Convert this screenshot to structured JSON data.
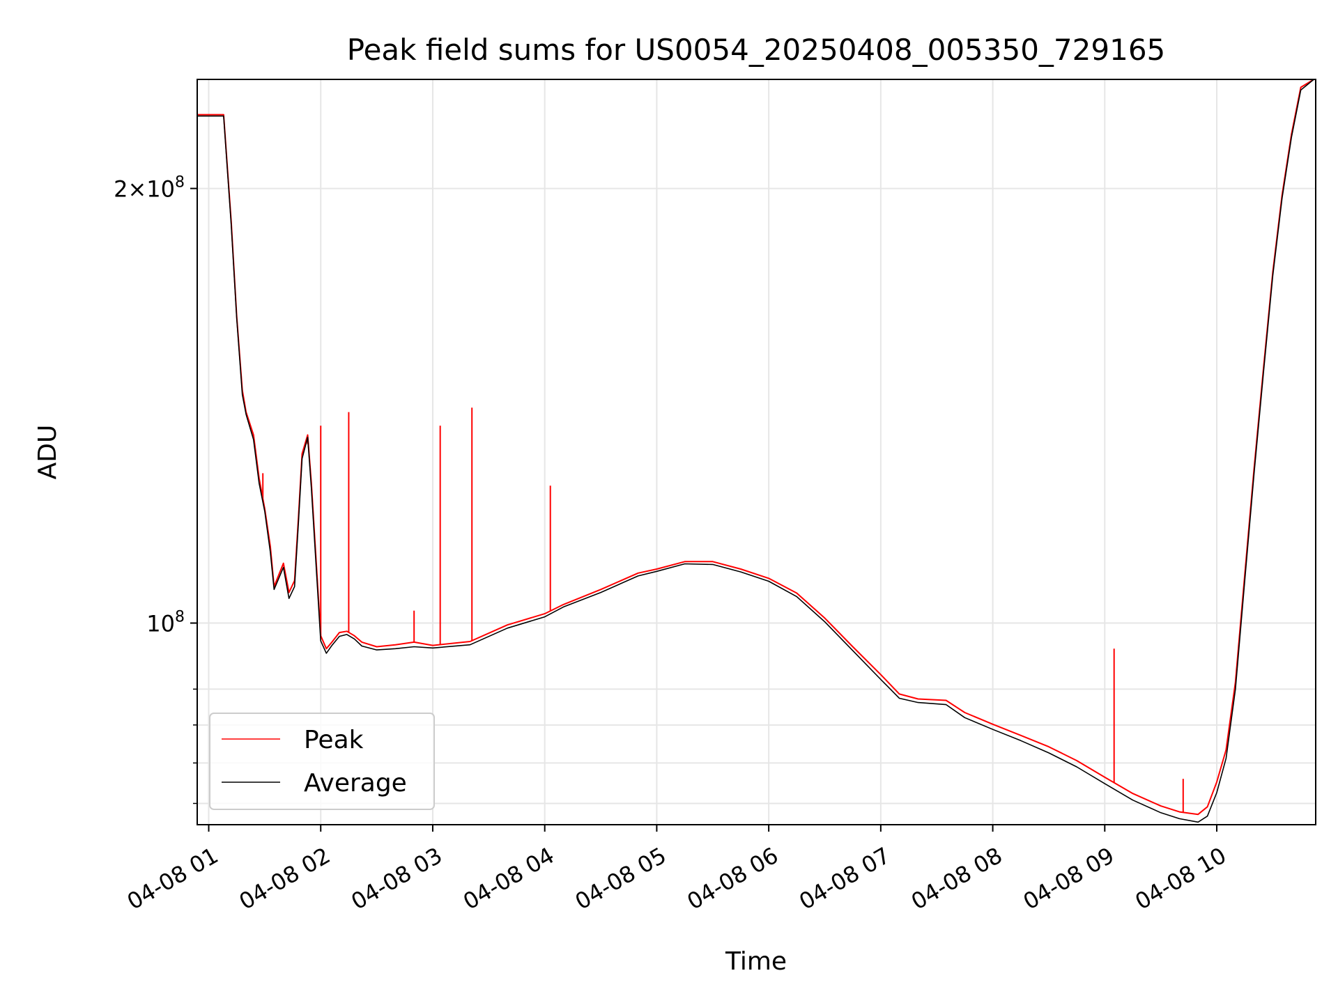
{
  "chart_data": {
    "type": "line",
    "title": "Peak field sums for US0054_20250408_005350_729165",
    "xlabel": "Time",
    "ylabel": "ADU",
    "y_scale": "log",
    "grid": true,
    "legend_position": "lower-left",
    "xlim": [
      "2025-04-08 00:53:50",
      "2025-04-08 10:53:00"
    ],
    "ylim": [
      72500000,
      238000000
    ],
    "x_ticks": [
      "2025-04-08 01:00",
      "2025-04-08 02:00",
      "2025-04-08 03:00",
      "2025-04-08 04:00",
      "2025-04-08 05:00",
      "2025-04-08 06:00",
      "2025-04-08 07:00",
      "2025-04-08 08:00",
      "2025-04-08 09:00",
      "2025-04-08 10:00"
    ],
    "x_tick_labels": [
      "04-08 01",
      "04-08 02",
      "04-08 03",
      "04-08 04",
      "04-08 05",
      "04-08 06",
      "04-08 07",
      "04-08 08",
      "04-08 09",
      "04-08 10"
    ],
    "y_tick_labels": [
      {
        "value": 100000000,
        "base": "10",
        "exp": "8",
        "mantissa": ""
      },
      {
        "value": 200000000,
        "base": "10",
        "exp": "8",
        "mantissa": "2×"
      }
    ],
    "y_minor_ticks": [
      75000000,
      80000000,
      85000000,
      90000000
    ],
    "colors": {
      "Peak": "#ff0000",
      "Average": "#000000",
      "grid": "#e6e6e6"
    },
    "series": [
      {
        "name": "Peak",
        "color": "#ff0000",
        "x": [
          "2025-04-08 00:54",
          "2025-04-08 01:08",
          "2025-04-08 01:12",
          "2025-04-08 01:15",
          "2025-04-08 01:18",
          "2025-04-08 01:20",
          "2025-04-08 01:24",
          "2025-04-08 01:27",
          "2025-04-08 01:30",
          "2025-04-08 01:33",
          "2025-04-08 01:35",
          "2025-04-08 01:40",
          "2025-04-08 01:43",
          "2025-04-08 01:46",
          "2025-04-08 01:48",
          "2025-04-08 01:50",
          "2025-04-08 01:53",
          "2025-04-08 01:55",
          "2025-04-08 01:58",
          "2025-04-08 02:00",
          "2025-04-08 02:03",
          "2025-04-08 02:06",
          "2025-04-08 02:10",
          "2025-04-08 02:14",
          "2025-04-08 02:18",
          "2025-04-08 02:22",
          "2025-04-08 02:30",
          "2025-04-08 02:40",
          "2025-04-08 02:50",
          "2025-04-08 03:00",
          "2025-04-08 03:20",
          "2025-04-08 03:40",
          "2025-04-08 04:00",
          "2025-04-08 04:10",
          "2025-04-08 04:30",
          "2025-04-08 04:50",
          "2025-04-08 05:00",
          "2025-04-08 05:15",
          "2025-04-08 05:30",
          "2025-04-08 05:45",
          "2025-04-08 06:00",
          "2025-04-08 06:15",
          "2025-04-08 06:30",
          "2025-04-08 06:45",
          "2025-04-08 07:00",
          "2025-04-08 07:10",
          "2025-04-08 07:20",
          "2025-04-08 07:35",
          "2025-04-08 07:45",
          "2025-04-08 08:00",
          "2025-04-08 08:15",
          "2025-04-08 08:30",
          "2025-04-08 08:45",
          "2025-04-08 09:00",
          "2025-04-08 09:15",
          "2025-04-08 09:30",
          "2025-04-08 09:40",
          "2025-04-08 09:50",
          "2025-04-08 09:55",
          "2025-04-08 10:00",
          "2025-04-08 10:05",
          "2025-04-08 10:10",
          "2025-04-08 10:15",
          "2025-04-08 10:20",
          "2025-04-08 10:25",
          "2025-04-08 10:30",
          "2025-04-08 10:35",
          "2025-04-08 10:40",
          "2025-04-08 10:45",
          "2025-04-08 10:52"
        ],
        "values": [
          225000000,
          225000000,
          190000000,
          163000000,
          145000000,
          140000000,
          135000000,
          126000000,
          120000000,
          113000000,
          106000000,
          110000000,
          105000000,
          107000000,
          118000000,
          131000000,
          135000000,
          125000000,
          108000000,
          98000000,
          96000000,
          97000000,
          98500000,
          98700000,
          98000000,
          97000000,
          96300000,
          96600000,
          97000000,
          96500000,
          97100000,
          99700000,
          101500000,
          103000000,
          105500000,
          108300000,
          109000000,
          110300000,
          110300000,
          109000000,
          107400000,
          104900000,
          100800000,
          96300000,
          92100000,
          89300000,
          88600000,
          88400000,
          86700000,
          85100000,
          83600000,
          82100000,
          80300000,
          78200000,
          76200000,
          74700000,
          74000000,
          73700000,
          74600000,
          77600000,
          81700000,
          91000000,
          108000000,
          128000000,
          150000000,
          175000000,
          198000000,
          218000000,
          235000000,
          238000000
        ],
        "spikes": [
          {
            "x": "2025-04-08 01:29",
            "value": 127000000
          },
          {
            "x": "2025-04-08 01:53",
            "value": 133000000
          },
          {
            "x": "2025-04-08 02:00",
            "value": 137000000
          },
          {
            "x": "2025-04-08 02:15",
            "value": 140000000
          },
          {
            "x": "2025-04-08 02:50",
            "value": 102000000
          },
          {
            "x": "2025-04-08 03:04",
            "value": 137000000
          },
          {
            "x": "2025-04-08 03:21",
            "value": 141000000
          },
          {
            "x": "2025-04-08 04:03",
            "value": 124500000
          },
          {
            "x": "2025-04-08 09:05",
            "value": 96000000
          },
          {
            "x": "2025-04-08 09:42",
            "value": 78000000
          }
        ]
      },
      {
        "name": "Average",
        "color": "#000000",
        "x": [
          "2025-04-08 00:54",
          "2025-04-08 01:08",
          "2025-04-08 01:12",
          "2025-04-08 01:15",
          "2025-04-08 01:18",
          "2025-04-08 01:20",
          "2025-04-08 01:24",
          "2025-04-08 01:27",
          "2025-04-08 01:30",
          "2025-04-08 01:33",
          "2025-04-08 01:35",
          "2025-04-08 01:40",
          "2025-04-08 01:43",
          "2025-04-08 01:46",
          "2025-04-08 01:48",
          "2025-04-08 01:50",
          "2025-04-08 01:53",
          "2025-04-08 01:55",
          "2025-04-08 01:58",
          "2025-04-08 02:00",
          "2025-04-08 02:03",
          "2025-04-08 02:06",
          "2025-04-08 02:10",
          "2025-04-08 02:14",
          "2025-04-08 02:18",
          "2025-04-08 02:22",
          "2025-04-08 02:30",
          "2025-04-08 02:40",
          "2025-04-08 02:50",
          "2025-04-08 03:00",
          "2025-04-08 03:20",
          "2025-04-08 03:40",
          "2025-04-08 04:00",
          "2025-04-08 04:10",
          "2025-04-08 04:30",
          "2025-04-08 04:50",
          "2025-04-08 05:00",
          "2025-04-08 05:15",
          "2025-04-08 05:30",
          "2025-04-08 05:45",
          "2025-04-08 06:00",
          "2025-04-08 06:15",
          "2025-04-08 06:30",
          "2025-04-08 06:45",
          "2025-04-08 07:00",
          "2025-04-08 07:10",
          "2025-04-08 07:20",
          "2025-04-08 07:35",
          "2025-04-08 07:45",
          "2025-04-08 08:00",
          "2025-04-08 08:15",
          "2025-04-08 08:30",
          "2025-04-08 08:45",
          "2025-04-08 09:00",
          "2025-04-08 09:15",
          "2025-04-08 09:30",
          "2025-04-08 09:40",
          "2025-04-08 09:50",
          "2025-04-08 09:55",
          "2025-04-08 10:00",
          "2025-04-08 10:05",
          "2025-04-08 10:10",
          "2025-04-08 10:15",
          "2025-04-08 10:20",
          "2025-04-08 10:25",
          "2025-04-08 10:30",
          "2025-04-08 10:35",
          "2025-04-08 10:40",
          "2025-04-08 10:45",
          "2025-04-08 10:52"
        ],
        "values": [
          224500000,
          224500000,
          189000000,
          162500000,
          144000000,
          139500000,
          134000000,
          125000000,
          119500000,
          112000000,
          105500000,
          109300000,
          104000000,
          106000000,
          117000000,
          130000000,
          134500000,
          124000000,
          107000000,
          97200000,
          95300000,
          96500000,
          97900000,
          98200000,
          97500000,
          96400000,
          95800000,
          96000000,
          96300000,
          96100000,
          96600000,
          99200000,
          101000000,
          102600000,
          105000000,
          107800000,
          108600000,
          109900000,
          109800000,
          108500000,
          106900000,
          104300000,
          100200000,
          95700000,
          91400000,
          88700000,
          88100000,
          87800000,
          86000000,
          84400000,
          82900000,
          81300000,
          79500000,
          77400000,
          75400000,
          73900000,
          73200000,
          72800000,
          73500000,
          76300000,
          80600000,
          90000000,
          107000000,
          127000000,
          149000000,
          174000000,
          197000000,
          217000000,
          234000000,
          238000000
        ]
      }
    ]
  }
}
